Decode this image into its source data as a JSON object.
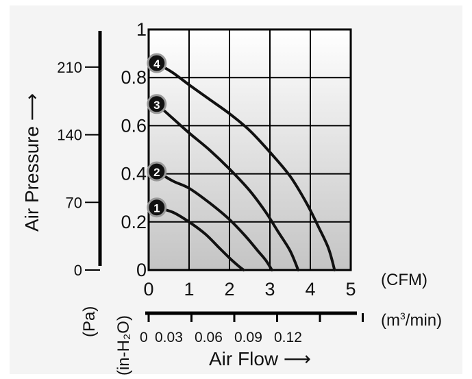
{
  "chart_data": {
    "type": "line",
    "xlabel": "Air Flow",
    "ylabel": "Air Pressure",
    "x_unit_top": "(CFM)",
    "x_unit_bottom": "(m³/min)",
    "x_sup_mark": "3",
    "y_unit_outer": "(Pa)",
    "y_unit_inner": "(in-H₂O)",
    "x_ticks": [
      "0",
      "1",
      "2",
      "3",
      "4",
      "5"
    ],
    "y_ticks": [
      "0",
      "0.2",
      "0.4",
      "0.6",
      "0.8",
      "1"
    ],
    "x2_ticks": [
      "0",
      "0.03",
      "0.06",
      "0.09",
      "0.12"
    ],
    "y2_ticks": [
      "0",
      "70",
      "140",
      "210"
    ],
    "xlim": [
      0,
      5
    ],
    "ylim": [
      0,
      1
    ],
    "series": [
      {
        "name": "1",
        "x": [
          0.2,
          0.6,
          1.0,
          1.4,
          1.7,
          2.0,
          2.2,
          2.35
        ],
        "y": [
          0.26,
          0.24,
          0.2,
          0.15,
          0.1,
          0.05,
          0.02,
          0.0
        ]
      },
      {
        "name": "2",
        "x": [
          0.2,
          0.6,
          1.0,
          1.5,
          2.0,
          2.4,
          2.7,
          2.9,
          3.05
        ],
        "y": [
          0.41,
          0.37,
          0.34,
          0.28,
          0.21,
          0.14,
          0.08,
          0.04,
          0.0
        ]
      },
      {
        "name": "3",
        "x": [
          0.2,
          0.6,
          1.0,
          1.5,
          2.0,
          2.5,
          2.9,
          3.2,
          3.5,
          3.7
        ],
        "y": [
          0.69,
          0.63,
          0.57,
          0.5,
          0.42,
          0.33,
          0.24,
          0.16,
          0.08,
          0.0
        ]
      },
      {
        "name": "4",
        "x": [
          0.2,
          0.6,
          1.0,
          1.5,
          2.0,
          2.5,
          3.0,
          3.5,
          3.9,
          4.2,
          4.45,
          4.6
        ],
        "y": [
          0.86,
          0.82,
          0.77,
          0.71,
          0.65,
          0.58,
          0.49,
          0.39,
          0.28,
          0.18,
          0.09,
          0.0
        ]
      }
    ],
    "grid": true,
    "colors": {
      "line": "#111111",
      "grid": "#000000",
      "plot_top": "#ffffff",
      "plot_bottom": "#c4c4c4",
      "panel": "#f4f4f4"
    }
  }
}
